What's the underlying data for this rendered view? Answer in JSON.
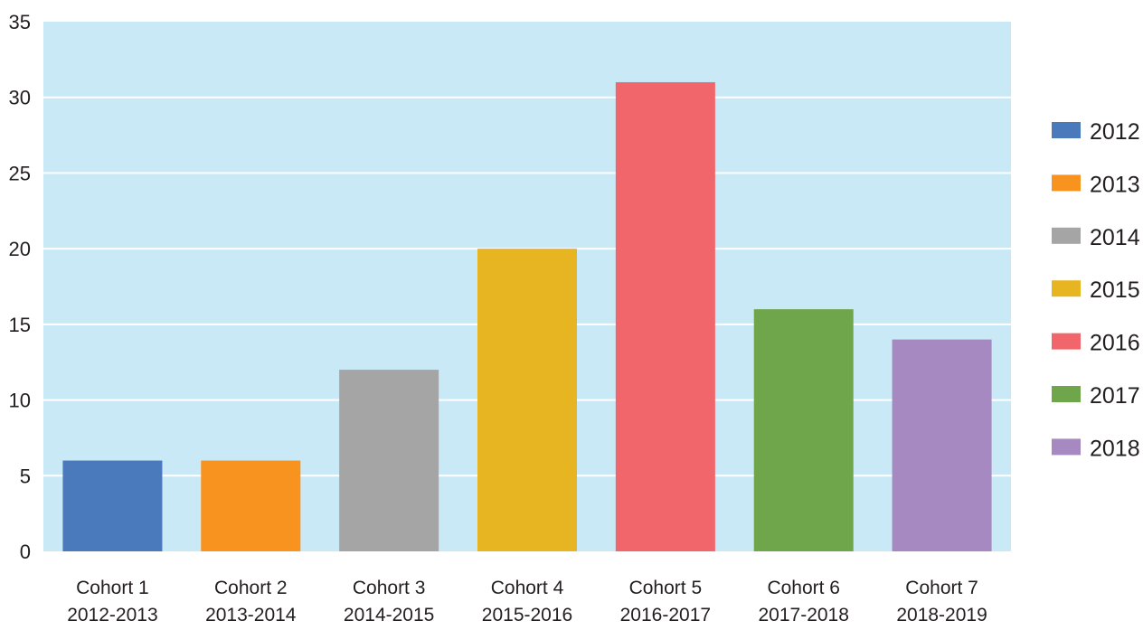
{
  "chart_data": {
    "type": "bar",
    "categories": [
      [
        "Cohort 1",
        "2012-2013"
      ],
      [
        "Cohort 2",
        "2013-2014"
      ],
      [
        "Cohort 3",
        "2014-2015"
      ],
      [
        "Cohort 4",
        "2015-2016"
      ],
      [
        "Cohort 5",
        "2016-2017"
      ],
      [
        "Cohort 6",
        "2017-2018"
      ],
      [
        "Cohort 7",
        "2018-2019"
      ]
    ],
    "series": [
      {
        "name": "2012",
        "category_index": 0,
        "value": 6,
        "color": "#4a7abc"
      },
      {
        "name": "2013",
        "category_index": 1,
        "value": 6,
        "color": "#f7931e"
      },
      {
        "name": "2014",
        "category_index": 2,
        "value": 12,
        "color": "#a5a5a5"
      },
      {
        "name": "2015",
        "category_index": 3,
        "value": 20,
        "color": "#e7b522"
      },
      {
        "name": "2016",
        "category_index": 4,
        "value": 31,
        "color": "#f0666a"
      },
      {
        "name": "2017",
        "category_index": 5,
        "value": 16,
        "color": "#70a64b"
      },
      {
        "name": "2018",
        "category_index": 6,
        "value": 14,
        "color": "#a589c0"
      }
    ],
    "title": "",
    "xlabel": "",
    "ylabel": "",
    "ylim": [
      0,
      35
    ],
    "yticks": [
      0,
      5,
      10,
      15,
      20,
      25,
      30,
      35
    ],
    "grid": true,
    "legend_position": "right",
    "plot_background": "#c9e9f7",
    "grid_color": "#ffffff"
  }
}
